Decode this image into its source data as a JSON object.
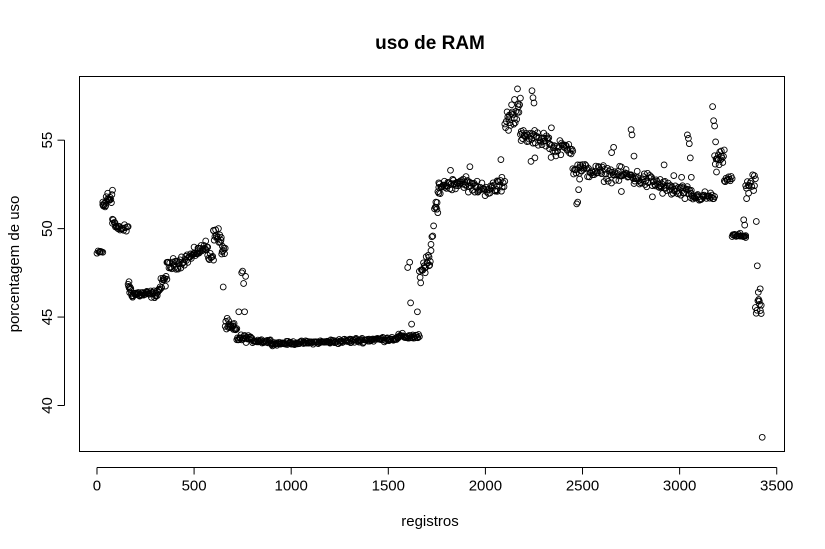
{
  "chart_data": {
    "type": "scatter",
    "title": "uso de RAM",
    "xlabel": "registros",
    "ylabel": "porcentagem de uso",
    "xlim": [
      -90,
      3540
    ],
    "ylim": [
      37.4,
      58.6
    ],
    "xticks": [
      0,
      500,
      1000,
      1500,
      2000,
      2500,
      3000,
      3500
    ],
    "yticks": [
      40,
      45,
      50,
      55
    ],
    "marker": "open-circle",
    "grid": false,
    "legend": "none",
    "segments": [
      {
        "x0": 0,
        "x1": 30,
        "y0": 48.6,
        "y1": 48.7,
        "noise": 0.1,
        "n": 6
      },
      {
        "x0": 30,
        "x1": 80,
        "y0": 51.2,
        "y1": 52.0,
        "noise": 0.35,
        "n": 18
      },
      {
        "x0": 80,
        "x1": 110,
        "y0": 50.6,
        "y1": 49.8,
        "noise": 0.3,
        "n": 8
      },
      {
        "x0": 110,
        "x1": 160,
        "y0": 50.0,
        "y1": 50.0,
        "noise": 0.15,
        "n": 12
      },
      {
        "x0": 160,
        "x1": 180,
        "y0": 46.9,
        "y1": 46.2,
        "noise": 0.3,
        "n": 8
      },
      {
        "x0": 180,
        "x1": 310,
        "y0": 46.3,
        "y1": 46.3,
        "noise": 0.15,
        "n": 40
      },
      {
        "x0": 310,
        "x1": 360,
        "y0": 46.4,
        "y1": 47.3,
        "noise": 0.3,
        "n": 14
      },
      {
        "x0": 360,
        "x1": 500,
        "y0": 47.8,
        "y1": 48.5,
        "noise": 0.25,
        "n": 40
      },
      {
        "x0": 500,
        "x1": 570,
        "y0": 48.6,
        "y1": 49.0,
        "noise": 0.2,
        "n": 20
      },
      {
        "x0": 570,
        "x1": 600,
        "y0": 48.5,
        "y1": 48.3,
        "noise": 0.15,
        "n": 8
      },
      {
        "x0": 600,
        "x1": 660,
        "y0": 49.8,
        "y1": 48.7,
        "noise": 0.35,
        "n": 18
      },
      {
        "x0": 660,
        "x1": 720,
        "y0": 44.6,
        "y1": 44.2,
        "noise": 0.25,
        "n": 18
      },
      {
        "x0": 720,
        "x1": 790,
        "y0": 43.8,
        "y1": 43.8,
        "noise": 0.15,
        "n": 20
      },
      {
        "x0": 790,
        "x1": 900,
        "y0": 43.7,
        "y1": 43.6,
        "noise": 0.1,
        "n": 30
      },
      {
        "x0": 900,
        "x1": 1200,
        "y0": 43.5,
        "y1": 43.6,
        "noise": 0.07,
        "n": 80
      },
      {
        "x0": 1200,
        "x1": 1550,
        "y0": 43.6,
        "y1": 43.8,
        "noise": 0.1,
        "n": 90
      },
      {
        "x0": 1550,
        "x1": 1660,
        "y0": 43.9,
        "y1": 43.9,
        "noise": 0.12,
        "n": 30
      },
      {
        "x0": 1660,
        "x1": 1720,
        "y0": 47.1,
        "y1": 48.6,
        "noise": 0.4,
        "n": 18
      },
      {
        "x0": 1720,
        "x1": 1760,
        "y0": 49.0,
        "y1": 52.3,
        "noise": 0.4,
        "n": 10
      },
      {
        "x0": 1760,
        "x1": 1900,
        "y0": 52.4,
        "y1": 52.7,
        "noise": 0.25,
        "n": 40
      },
      {
        "x0": 1900,
        "x1": 2060,
        "y0": 52.4,
        "y1": 52.2,
        "noise": 0.3,
        "n": 40
      },
      {
        "x0": 2060,
        "x1": 2100,
        "y0": 52.6,
        "y1": 52.4,
        "noise": 0.3,
        "n": 10
      },
      {
        "x0": 2100,
        "x1": 2180,
        "y0": 56.0,
        "y1": 56.8,
        "noise": 0.45,
        "n": 22
      },
      {
        "x0": 2180,
        "x1": 2330,
        "y0": 55.2,
        "y1": 55.0,
        "noise": 0.3,
        "n": 40
      },
      {
        "x0": 2330,
        "x1": 2450,
        "y0": 54.5,
        "y1": 54.6,
        "noise": 0.3,
        "n": 30
      },
      {
        "x0": 2450,
        "x1": 2700,
        "y0": 53.4,
        "y1": 53.0,
        "noise": 0.3,
        "n": 60
      },
      {
        "x0": 2700,
        "x1": 2900,
        "y0": 53.1,
        "y1": 52.5,
        "noise": 0.35,
        "n": 50
      },
      {
        "x0": 2900,
        "x1": 3060,
        "y0": 52.4,
        "y1": 51.9,
        "noise": 0.3,
        "n": 40
      },
      {
        "x0": 3060,
        "x1": 3180,
        "y0": 51.8,
        "y1": 51.8,
        "noise": 0.2,
        "n": 30
      },
      {
        "x0": 3180,
        "x1": 3230,
        "y0": 53.8,
        "y1": 54.0,
        "noise": 0.3,
        "n": 14
      },
      {
        "x0": 3230,
        "x1": 3270,
        "y0": 52.8,
        "y1": 52.8,
        "noise": 0.15,
        "n": 10
      },
      {
        "x0": 3270,
        "x1": 3340,
        "y0": 49.6,
        "y1": 49.6,
        "noise": 0.1,
        "n": 18
      },
      {
        "x0": 3340,
        "x1": 3390,
        "y0": 52.6,
        "y1": 52.4,
        "noise": 0.35,
        "n": 12
      },
      {
        "x0": 3390,
        "x1": 3420,
        "y0": 45.4,
        "y1": 45.7,
        "noise": 0.3,
        "n": 8
      }
    ],
    "points": [
      [
        15,
        48.7
      ],
      [
        30,
        51.5
      ],
      [
        55,
        52.0
      ],
      [
        65,
        51.6
      ],
      [
        80,
        50.3
      ],
      [
        95,
        50.1
      ],
      [
        165,
        47.0
      ],
      [
        170,
        46.7
      ],
      [
        325,
        46.7
      ],
      [
        340,
        47.1
      ],
      [
        520,
        48.9
      ],
      [
        560,
        49.3
      ],
      [
        600,
        49.9
      ],
      [
        625,
        50.0
      ],
      [
        640,
        49.5
      ],
      [
        645,
        48.7
      ],
      [
        650,
        46.7
      ],
      [
        680,
        44.4
      ],
      [
        700,
        44.6
      ],
      [
        730,
        45.3
      ],
      [
        745,
        47.5
      ],
      [
        750,
        47.6
      ],
      [
        755,
        46.9
      ],
      [
        760,
        45.3
      ],
      [
        765,
        47.3
      ],
      [
        1600,
        47.8
      ],
      [
        1610,
        48.1
      ],
      [
        1615,
        45.8
      ],
      [
        1620,
        44.6
      ],
      [
        1650,
        45.3
      ],
      [
        1690,
        47.5
      ],
      [
        1710,
        47.9
      ],
      [
        1745,
        51.5
      ],
      [
        1750,
        51.1
      ],
      [
        1755,
        50.9
      ],
      [
        1760,
        52.0
      ],
      [
        1820,
        53.3
      ],
      [
        1920,
        53.5
      ],
      [
        2080,
        53.9
      ],
      [
        2085,
        52.9
      ],
      [
        2120,
        56.2
      ],
      [
        2135,
        57.0
      ],
      [
        2150,
        57.3
      ],
      [
        2165,
        57.9
      ],
      [
        2170,
        56.9
      ],
      [
        2185,
        55.5
      ],
      [
        2240,
        57.8
      ],
      [
        2245,
        57.4
      ],
      [
        2250,
        57.1
      ],
      [
        2255,
        54.0
      ],
      [
        2235,
        53.8
      ],
      [
        2300,
        55.4
      ],
      [
        2340,
        55.7
      ],
      [
        2470,
        51.4
      ],
      [
        2475,
        51.5
      ],
      [
        2480,
        52.2
      ],
      [
        2485,
        52.8
      ],
      [
        2490,
        53.5
      ],
      [
        2650,
        54.3
      ],
      [
        2660,
        54.6
      ],
      [
        2700,
        52.1
      ],
      [
        2750,
        55.6
      ],
      [
        2755,
        55.3
      ],
      [
        2765,
        54.1
      ],
      [
        2860,
        51.8
      ],
      [
        2920,
        53.6
      ],
      [
        2970,
        53.0
      ],
      [
        3010,
        52.9
      ],
      [
        3020,
        52.3
      ],
      [
        3040,
        55.3
      ],
      [
        3045,
        55.1
      ],
      [
        3050,
        54.8
      ],
      [
        3055,
        54.0
      ],
      [
        3060,
        52.9
      ],
      [
        3170,
        56.9
      ],
      [
        3175,
        56.1
      ],
      [
        3180,
        55.8
      ],
      [
        3185,
        54.9
      ],
      [
        3190,
        53.2
      ],
      [
        3200,
        53.9
      ],
      [
        3215,
        54.1
      ],
      [
        3330,
        50.5
      ],
      [
        3335,
        50.2
      ],
      [
        3340,
        49.5
      ],
      [
        3345,
        51.7
      ],
      [
        3355,
        52.0
      ],
      [
        3385,
        53.0
      ],
      [
        3395,
        50.4
      ],
      [
        3400,
        47.9
      ],
      [
        3405,
        46.4
      ],
      [
        3410,
        45.9
      ],
      [
        3415,
        46.6
      ],
      [
        3420,
        45.2
      ],
      [
        3425,
        38.2
      ]
    ]
  }
}
